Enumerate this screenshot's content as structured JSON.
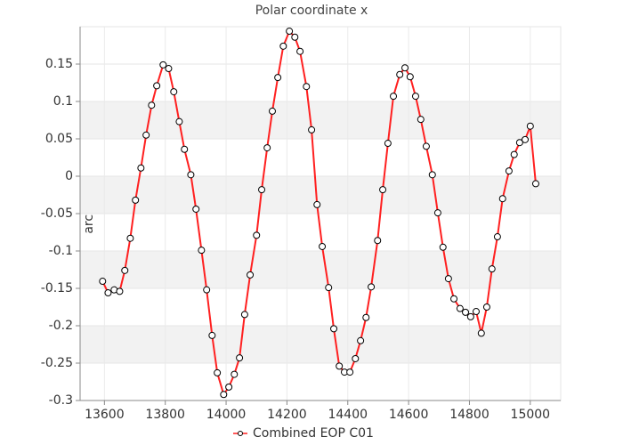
{
  "chart_data": {
    "type": "line",
    "title": "Polar coordinate x",
    "y_label": "arcsec",
    "x": [
      13594,
      13612,
      13632,
      13650,
      13667,
      13685,
      13702,
      13720,
      13737,
      13755,
      13772,
      13793,
      13811,
      13828,
      13846,
      13863,
      13884,
      13901,
      13919,
      13936,
      13954,
      13971,
      13992,
      14009,
      14027,
      14044,
      14061,
      14079,
      14100,
      14117,
      14135,
      14152,
      14170,
      14188,
      14208,
      14226,
      14243,
      14264,
      14281,
      14299,
      14316,
      14337,
      14354,
      14372,
      14389,
      14407,
      14425,
      14442,
      14460,
      14477,
      14498,
      14515,
      14532,
      14550,
      14571,
      14588,
      14605,
      14623,
      14640,
      14658,
      14678,
      14696,
      14713,
      14731,
      14749,
      14769,
      14787,
      14804,
      14822,
      14839,
      14857,
      14874,
      14892,
      14909,
      14930,
      14947,
      14965,
      14983,
      15000,
      15018
    ],
    "series": [
      {
        "name": "Combined EOP C01",
        "color": "#ff2020",
        "values": [
          -0.1405,
          -0.156,
          -0.152,
          -0.154,
          -0.126,
          -0.083,
          -0.032,
          0.011,
          0.055,
          0.095,
          0.121,
          0.149,
          0.144,
          0.113,
          0.073,
          0.036,
          0.002,
          -0.044,
          -0.099,
          -0.152,
          -0.213,
          -0.263,
          -0.292,
          -0.282,
          -0.265,
          -0.243,
          -0.185,
          -0.132,
          -0.079,
          -0.018,
          0.038,
          0.087,
          0.132,
          0.174,
          0.194,
          0.186,
          0.167,
          0.12,
          0.062,
          -0.038,
          -0.094,
          -0.149,
          -0.204,
          -0.254,
          -0.262,
          -0.262,
          -0.244,
          -0.22,
          -0.189,
          -0.148,
          -0.086,
          -0.018,
          0.044,
          0.107,
          0.136,
          0.145,
          0.133,
          0.107,
          0.076,
          0.04,
          0.002,
          -0.049,
          -0.095,
          -0.137,
          -0.164,
          -0.177,
          -0.182,
          -0.188,
          -0.181,
          -0.21,
          -0.175,
          -0.124,
          -0.081,
          -0.03,
          0.007,
          0.029,
          0.045,
          0.049,
          0.067,
          -0.01
        ]
      }
    ],
    "xlim": [
      13520,
      15100
    ],
    "xticks": [
      13600,
      13800,
      14000,
      14200,
      14400,
      14600,
      14800,
      15000
    ],
    "ylim": [
      -0.3,
      0.2
    ],
    "yticks": [
      -0.3,
      -0.25,
      -0.2,
      -0.15,
      -0.1,
      -0.05,
      0,
      0.05,
      0.1,
      0.15
    ],
    "grid": true,
    "bands": true,
    "legend": "bottom"
  }
}
